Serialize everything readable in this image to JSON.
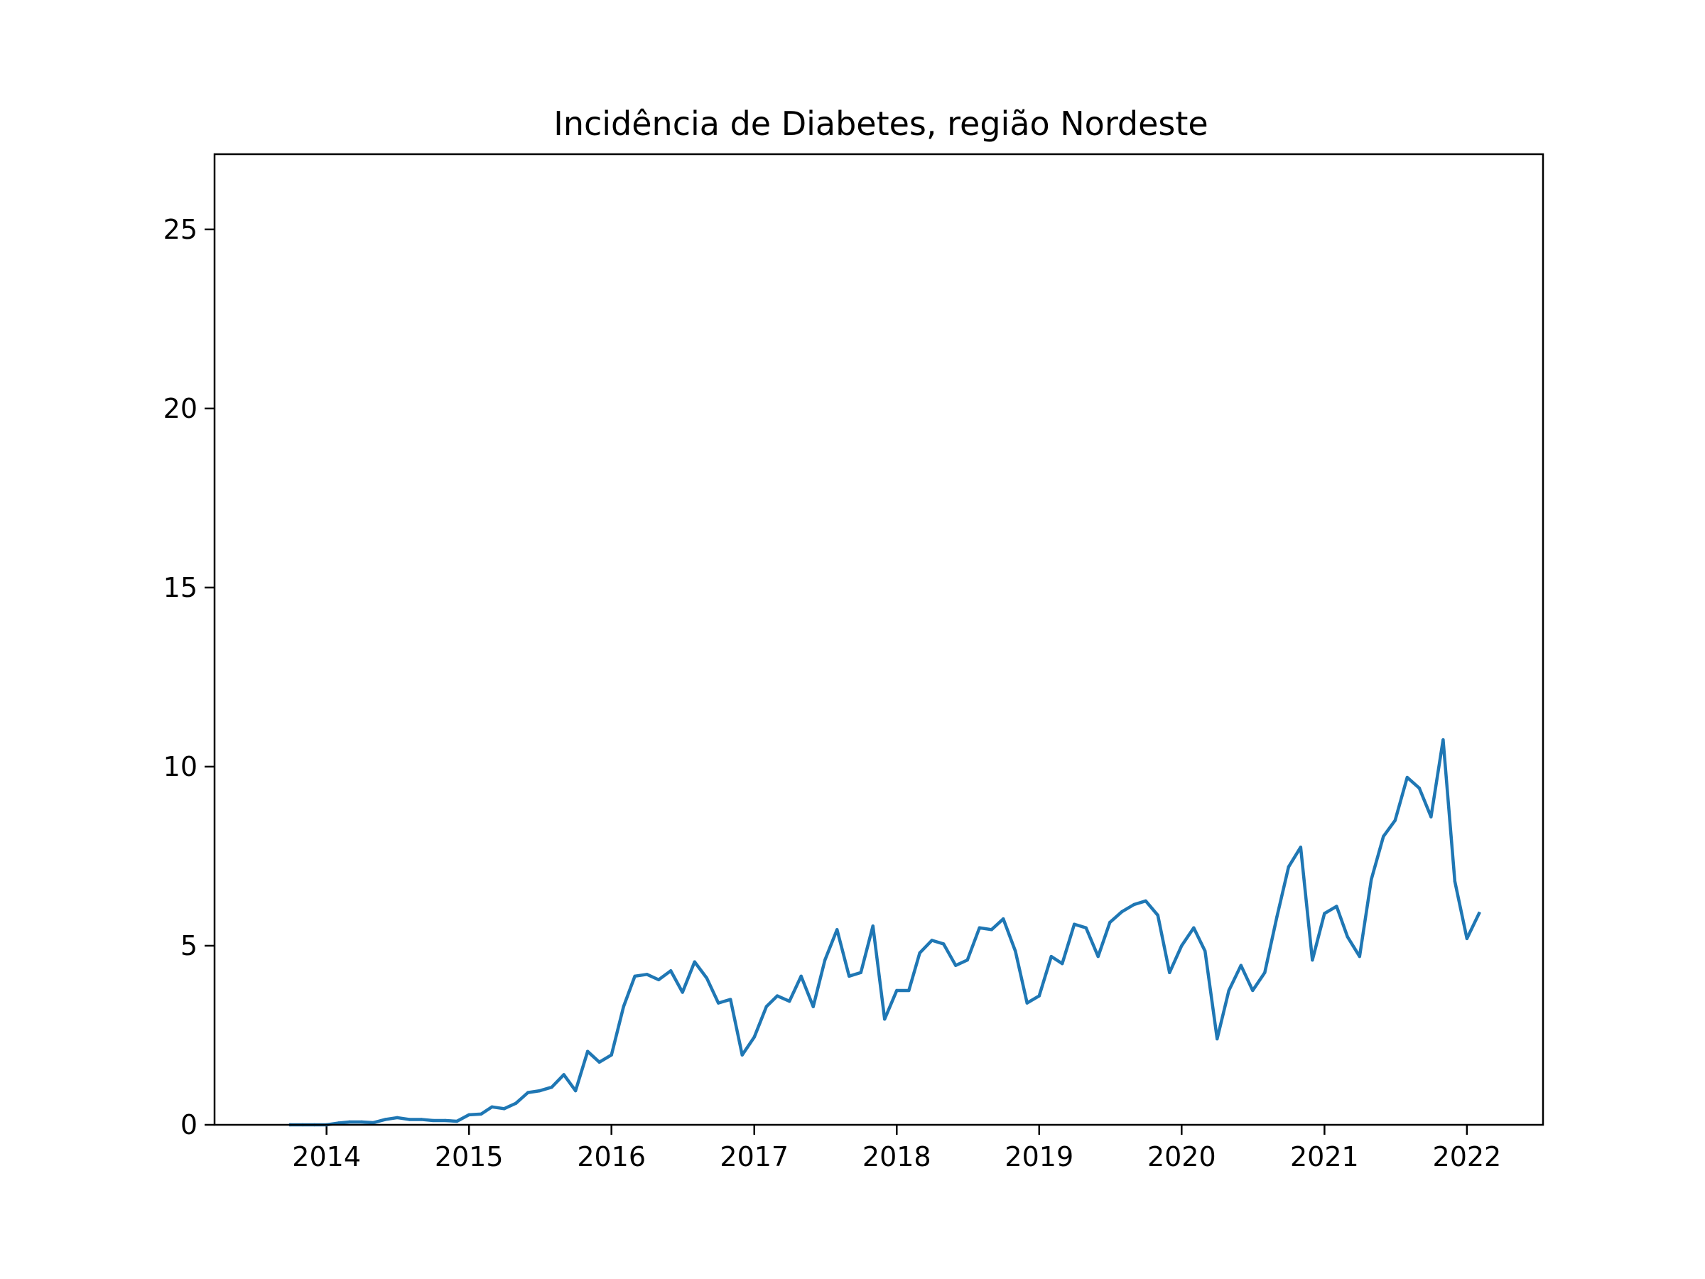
{
  "chart_data": {
    "type": "line",
    "title": "Incidência de Diabetes, região Nordeste",
    "xlabel": "",
    "ylabel": "",
    "x_ticks": [
      "2014",
      "2015",
      "2016",
      "2017",
      "2018",
      "2019",
      "2020",
      "2021",
      "2022"
    ],
    "y_ticks": [
      "0",
      "5",
      "10",
      "15",
      "20",
      "25"
    ],
    "xlim": [
      "2013-03-20",
      "2022-07-15"
    ],
    "ylim": [
      0,
      27.1
    ],
    "grid": false,
    "line_color": "#1f77b4",
    "series": [
      {
        "x": [
          "2013-10-01",
          "2013-11-01",
          "2013-12-01",
          "2014-01-01",
          "2014-02-01",
          "2014-03-01",
          "2014-04-01",
          "2014-05-01",
          "2014-06-01",
          "2014-07-01",
          "2014-08-01",
          "2014-09-01",
          "2014-10-01",
          "2014-11-01",
          "2014-12-01",
          "2015-01-01",
          "2015-02-01",
          "2015-03-01",
          "2015-04-01",
          "2015-05-01",
          "2015-06-01",
          "2015-07-01",
          "2015-08-01",
          "2015-09-01",
          "2015-10-01",
          "2015-11-01",
          "2015-12-01",
          "2016-01-01",
          "2016-02-01",
          "2016-03-01",
          "2016-04-01",
          "2016-05-01",
          "2016-06-01",
          "2016-07-01",
          "2016-08-01",
          "2016-09-01",
          "2016-10-01",
          "2016-11-01",
          "2016-12-01",
          "2017-01-01",
          "2017-02-01",
          "2017-03-01",
          "2017-04-01",
          "2017-05-01",
          "2017-06-01",
          "2017-07-01",
          "2017-08-01",
          "2017-09-01",
          "2017-10-01",
          "2017-11-01",
          "2017-12-01",
          "2018-01-01",
          "2018-02-01",
          "2018-03-01",
          "2018-04-01",
          "2018-05-01",
          "2018-06-01",
          "2018-07-01",
          "2018-08-01",
          "2018-09-01",
          "2018-10-01",
          "2018-11-01",
          "2018-12-01",
          "2019-01-01",
          "2019-02-01",
          "2019-03-01",
          "2019-04-01",
          "2019-05-01",
          "2019-06-01",
          "2019-07-01",
          "2019-08-01",
          "2019-09-01",
          "2019-10-01",
          "2019-11-01",
          "2019-12-01",
          "2020-01-01",
          "2020-02-01",
          "2020-03-01",
          "2020-04-01",
          "2020-05-01",
          "2020-06-01",
          "2020-07-01",
          "2020-08-01",
          "2020-09-01",
          "2020-10-01",
          "2020-11-01",
          "2020-12-01",
          "2021-01-01",
          "2021-02-01",
          "2021-03-01",
          "2021-04-01",
          "2021-05-01",
          "2021-06-01",
          "2021-07-01",
          "2021-08-01",
          "2021-09-01",
          "2021-10-01",
          "2021-11-01",
          "2021-12-01",
          "2022-01-01",
          "2022-02-01"
        ],
        "y": [
          0.0,
          0.0,
          0.0,
          0.0,
          0.05,
          0.08,
          0.08,
          0.06,
          0.15,
          0.2,
          0.15,
          0.15,
          0.12,
          0.12,
          0.1,
          0.28,
          0.3,
          0.5,
          0.45,
          0.6,
          0.9,
          0.95,
          1.05,
          1.4,
          0.95,
          2.05,
          1.75,
          1.95,
          3.3,
          4.15,
          4.2,
          4.05,
          4.3,
          3.7,
          4.55,
          4.1,
          3.4,
          3.5,
          1.95,
          2.45,
          3.3,
          3.6,
          3.45,
          4.15,
          3.3,
          4.6,
          5.45,
          4.15,
          4.25,
          5.55,
          2.95,
          3.75,
          3.75,
          4.8,
          5.15,
          5.05,
          4.45,
          4.6,
          5.5,
          5.45,
          5.75,
          4.85,
          3.4,
          3.6,
          4.7,
          4.5,
          5.6,
          5.5,
          4.7,
          5.65,
          5.95,
          6.15,
          6.25,
          5.85,
          4.25,
          5.0,
          5.5,
          4.85,
          2.4,
          3.75,
          4.45,
          3.75,
          4.25,
          5.8,
          7.2,
          7.75,
          4.6,
          5.9,
          6.1,
          5.25,
          4.7,
          6.85,
          8.05,
          8.5,
          9.7,
          9.4,
          8.6,
          10.75,
          6.8,
          5.2,
          5.9
        ]
      }
    ]
  }
}
